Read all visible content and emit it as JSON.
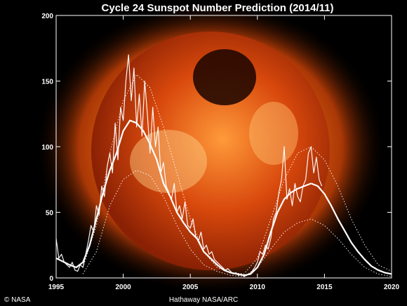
{
  "chart_data": {
    "type": "line",
    "title": "Cycle 24 Sunspot Number Prediction (2014/11)",
    "xlabel": "",
    "ylabel": "",
    "xlim": [
      1995,
      2020
    ],
    "ylim": [
      0,
      200
    ],
    "x_ticks": [
      "1995",
      "2000",
      "2005",
      "2010",
      "2015",
      "2020"
    ],
    "y_ticks": [
      "0",
      "50",
      "100",
      "150",
      "200"
    ],
    "grid": false,
    "legend": "none",
    "background": "solar corona image (sun in orange/red) behind the plot",
    "series": [
      {
        "style": "monthly",
        "color": "#ffffff",
        "x": [
          1995.0,
          1995.2,
          1995.4,
          1995.6,
          1995.8,
          1996.0,
          1996.2,
          1996.4,
          1996.6,
          1996.8,
          1997.0,
          1997.2,
          1997.4,
          1997.6,
          1997.8,
          1998.0,
          1998.2,
          1998.4,
          1998.6,
          1998.8,
          1999.0,
          1999.2,
          1999.4,
          1999.6,
          1999.8,
          2000.0,
          2000.2,
          2000.4,
          2000.6,
          2000.8,
          2001.0,
          2001.2,
          2001.4,
          2001.6,
          2001.8,
          2002.0,
          2002.2,
          2002.4,
          2002.6,
          2002.8,
          2003.0,
          2003.2,
          2003.4,
          2003.6,
          2003.8,
          2004.0,
          2004.2,
          2004.4,
          2004.6,
          2004.8,
          2005.0,
          2005.2,
          2005.4,
          2005.6,
          2005.8,
          2006.0,
          2006.2,
          2006.4,
          2006.6,
          2006.8,
          2007.0,
          2007.2,
          2007.4,
          2007.6,
          2007.8,
          2008.0,
          2008.2,
          2008.4,
          2008.6,
          2008.8,
          2009.0,
          2009.2,
          2009.4,
          2009.6,
          2009.8,
          2010.0,
          2010.2,
          2010.4,
          2010.6,
          2010.8,
          2011.0,
          2011.2,
          2011.4,
          2011.6,
          2011.8,
          2012.0,
          2012.2,
          2012.4,
          2012.6,
          2012.8,
          2013.0,
          2013.2,
          2013.4,
          2013.6,
          2013.8,
          2014.0,
          2014.2,
          2014.4,
          2014.6,
          2014.8
        ],
        "y": [
          30,
          15,
          18,
          12,
          10,
          8,
          12,
          6,
          5,
          10,
          8,
          18,
          28,
          40,
          35,
          55,
          48,
          70,
          62,
          85,
          95,
          80,
          118,
          90,
          130,
          120,
          150,
          170,
          135,
          160,
          115,
          140,
          108,
          150,
          125,
          95,
          130,
          100,
          115,
          80,
          88,
          70,
          65,
          60,
          72,
          50,
          55,
          45,
          58,
          40,
          38,
          45,
          32,
          28,
          35,
          22,
          25,
          18,
          20,
          14,
          12,
          10,
          8,
          6,
          7,
          5,
          3,
          4,
          2,
          3,
          1,
          2,
          3,
          5,
          8,
          12,
          20,
          18,
          25,
          22,
          30,
          45,
          50,
          65,
          75,
          100,
          60,
          68,
          55,
          72,
          62,
          58,
          70,
          75,
          95,
          100,
          80,
          92,
          75,
          70
        ]
      },
      {
        "style": "smoothed-observed",
        "color": "#ffffff",
        "x": [
          1995.0,
          1996.0,
          1996.5,
          1997.0,
          1997.5,
          1998.0,
          1998.5,
          1999.0,
          1999.5,
          2000.0,
          2000.5,
          2001.0,
          2001.5,
          2002.0,
          2002.5,
          2003.0,
          2003.5,
          2004.0,
          2004.5,
          2005.0,
          2005.5,
          2006.0,
          2006.5,
          2007.0,
          2007.5,
          2008.0,
          2008.5,
          2009.0,
          2009.5,
          2010.0,
          2010.5,
          2011.0,
          2011.5,
          2012.0,
          2012.5,
          2013.0,
          2013.5,
          2014.0
        ],
        "y": [
          15,
          10,
          8,
          12,
          25,
          45,
          65,
          82,
          95,
          112,
          120,
          118,
          112,
          102,
          90,
          72,
          62,
          50,
          42,
          35,
          30,
          20,
          15,
          10,
          6,
          4,
          3,
          2,
          3,
          8,
          18,
          35,
          50,
          60,
          65,
          68,
          70,
          72
        ]
      },
      {
        "style": "predicted",
        "color": "#ffffff",
        "x": [
          2014.0,
          2014.5,
          2015.0,
          2015.5,
          2016.0,
          2016.5,
          2017.0,
          2017.5,
          2018.0,
          2018.5,
          2019.0,
          2019.5,
          2020.0
        ],
        "y": [
          72,
          70,
          64,
          55,
          45,
          36,
          27,
          20,
          14,
          9,
          6,
          4,
          3
        ]
      },
      {
        "style": "upper-bound",
        "color": "#ffffff",
        "x": [
          1997.0,
          1998.0,
          1999.0,
          2000.0,
          2001.0,
          2002.0,
          2003.0,
          2004.0,
          2005.0,
          2006.0,
          2007.0,
          2008.0,
          2009.0,
          2010.0,
          2011.0,
          2012.0,
          2013.0,
          2014.0,
          2015.0,
          2016.0,
          2017.0,
          2018.0,
          2019.0,
          2020.0
        ],
        "y": [
          8,
          40,
          95,
          135,
          155,
          145,
          115,
          80,
          45,
          20,
          8,
          4,
          3,
          15,
          45,
          75,
          95,
          100,
          90,
          70,
          45,
          25,
          10,
          5
        ]
      },
      {
        "style": "lower-bound",
        "color": "#ffffff",
        "x": [
          1997.0,
          1998.0,
          1999.0,
          2000.0,
          2001.0,
          2002.0,
          2003.0,
          2004.0,
          2005.0,
          2006.0,
          2007.0,
          2008.0,
          2009.0,
          2010.0,
          2011.0,
          2012.0,
          2013.0,
          2014.0,
          2015.0,
          2016.0,
          2017.0,
          2018.0,
          2019.0,
          2020.0
        ],
        "y": [
          3,
          20,
          55,
          75,
          82,
          78,
          62,
          40,
          22,
          10,
          5,
          2,
          1,
          8,
          22,
          35,
          42,
          45,
          40,
          30,
          18,
          8,
          3,
          1
        ]
      }
    ]
  },
  "footer": {
    "credit_left": "© NASA",
    "credit_center": "Hathaway  NASA/ARC"
  },
  "colors": {
    "background": "#000000",
    "sun_core": "#c83a0a",
    "sun_glow": "#ff8a1c",
    "lines": "#ffffff"
  }
}
